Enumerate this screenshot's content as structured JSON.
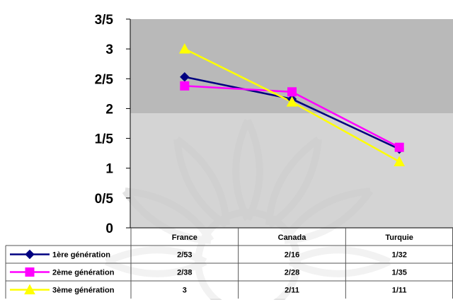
{
  "chart_data": {
    "type": "line",
    "categories": [
      "France",
      "Canada",
      "Turquie"
    ],
    "y_ticks": [
      "0",
      "0/5",
      "1",
      "1/5",
      "2",
      "2/5",
      "3",
      "3/5"
    ],
    "ylim": [
      0,
      3.5
    ],
    "grid": false,
    "legend": "data-table-bottom",
    "series": [
      {
        "name": "1ère génération",
        "values": [
          2.53,
          2.16,
          1.32
        ],
        "labels": [
          "2/53",
          "2/16",
          "1/32"
        ],
        "color": "#000080",
        "marker": "diamond"
      },
      {
        "name": "2ème génération",
        "values": [
          2.38,
          2.28,
          1.35
        ],
        "labels": [
          "2/38",
          "2/28",
          "1/35"
        ],
        "color": "#ff00ff",
        "marker": "square"
      },
      {
        "name": "3ème génération",
        "values": [
          3.0,
          2.11,
          1.11
        ],
        "labels": [
          "3",
          "2/11",
          "1/11"
        ],
        "color": "#ffff00",
        "marker": "triangle"
      }
    ]
  },
  "colors": {
    "plot_upper": "#b8b8b8",
    "plot_lower": "#cfcfcf",
    "axis": "#000000"
  }
}
